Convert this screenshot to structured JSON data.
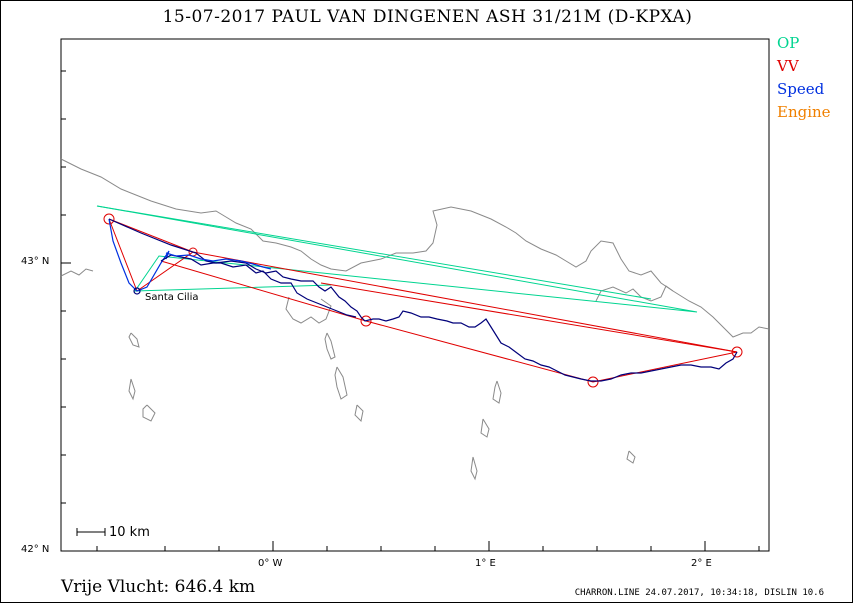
{
  "title": "15-07-2017   PAUL VAN DINGENEN   ASH 31/21M (D-KPXA)",
  "legend": [
    {
      "label": "OP",
      "color": "#00d490"
    },
    {
      "label": "VV",
      "color": "#e00000"
    },
    {
      "label": "Speed",
      "color": "#0030e0"
    },
    {
      "label": "Engine",
      "color": "#f08000"
    }
  ],
  "y_ticks": [
    "43° N",
    "42° N"
  ],
  "x_ticks": [
    "0° W",
    "1° E",
    "2° E"
  ],
  "scale_label": "10 km",
  "place_label": "Santa Cilia",
  "footer": {
    "distance": "Vrije Vlucht:  646.4 km",
    "credit": "CHARRON.LINE 24.07.2017, 10:34:18, DISLIN 10.6"
  },
  "colors": {
    "border": "#8a8a8a",
    "track": "#00007a",
    "op": "#00d490",
    "vv": "#e00000",
    "speed": "#0030e0"
  }
}
